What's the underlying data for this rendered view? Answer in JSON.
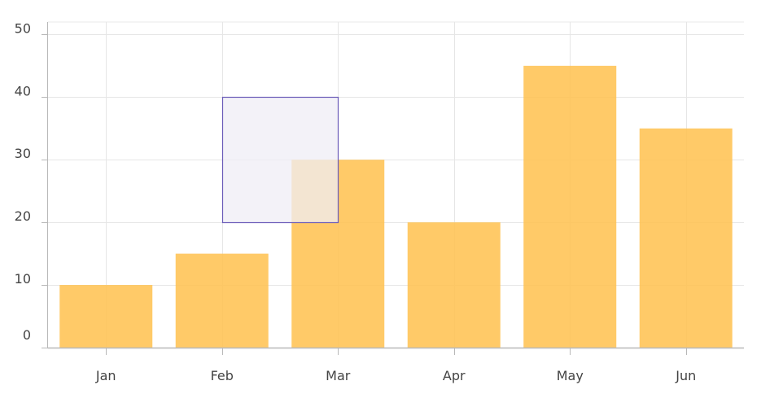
{
  "chart_data": {
    "type": "bar",
    "title": "",
    "xlabel": "",
    "ylabel": "",
    "categories": [
      "Jan",
      "Feb",
      "Mar",
      "Apr",
      "May",
      "Jun"
    ],
    "values": [
      10,
      15,
      30,
      20,
      45,
      35
    ],
    "ylim": [
      0,
      52
    ],
    "yticks": [
      0,
      10,
      20,
      30,
      40,
      50
    ],
    "ytick_labels": [
      "0",
      "10",
      "20",
      "30",
      "40",
      "50"
    ],
    "grid": true,
    "bar_color": "#ffc14d",
    "selection": {
      "x_from": "Feb",
      "x_to": "Mar",
      "y_from": 20,
      "y_to": 40,
      "fill_color": "#efedf6",
      "stroke_color": "#6a5bb8"
    }
  }
}
